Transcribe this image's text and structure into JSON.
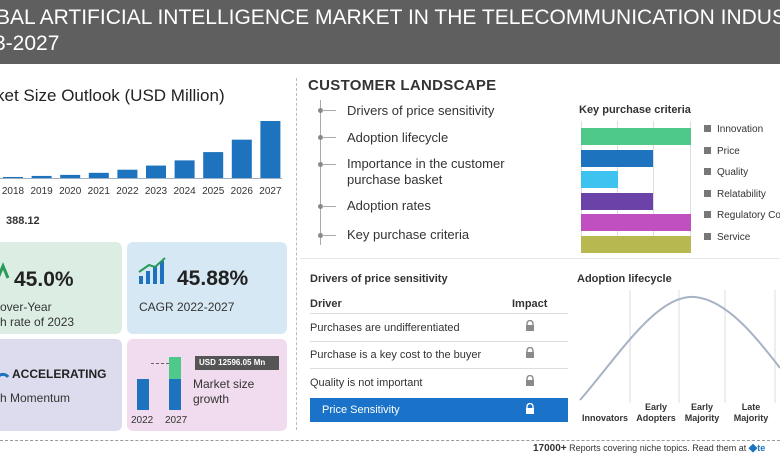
{
  "header": {
    "line1": "BAL ARTIFICIAL INTELLIGENCE MARKET IN THE TELECOMMUNICATION INDUSTRY MAR",
    "line2": "3-2027"
  },
  "market_outlook": {
    "title": "ket Size Outlook (USD Million)",
    "base_value": "388.12"
  },
  "chart_data": {
    "type": "bar",
    "title": "Market Size Outlook (USD Million)",
    "categories": [
      "2018",
      "2019",
      "2020",
      "2021",
      "2022",
      "2023",
      "2024",
      "2025",
      "2026",
      "2027"
    ],
    "values": [
      1,
      2,
      3,
      5,
      8,
      12,
      17,
      25,
      37,
      55
    ],
    "base_value_label": "388.12",
    "ylim": [
      0,
      55
    ],
    "color": "#1e73be"
  },
  "stats": {
    "yoy_value": "45.0%",
    "yoy_label_1": "over-Year",
    "yoy_label_2": "h rate of 2023",
    "cagr_value": "45.88%",
    "cagr_label": "CAGR  2022-2027",
    "momentum_title": "ACCELERATING",
    "momentum_label": "h Momentum",
    "growth_badge": "USD  12596.05 Mn",
    "growth_label_1": "Market size",
    "growth_label_2": "growth",
    "growth_year_start": "2022",
    "growth_year_end": "2027"
  },
  "customer_landscape": {
    "title": "CUSTOMER  LANDSCAPE",
    "items": [
      "Drivers of price sensitivity",
      "Adoption lifecycle",
      "Importance in the customer",
      "purchase basket",
      "Adoption rates",
      "Key purchase criteria"
    ]
  },
  "key_purchase_criteria": {
    "title": "Key purchase criteria",
    "items": [
      {
        "label": "Innovation",
        "value": 100,
        "color": "#4fc98a"
      },
      {
        "label": "Price",
        "value": 65,
        "color": "#1e73be"
      },
      {
        "label": "Quality",
        "value": 34,
        "color": "#3ec3f0"
      },
      {
        "label": "Relatability",
        "value": 65,
        "color": "#6b43a8"
      },
      {
        "label": "Regulatory Co",
        "value": 100,
        "color": "#c04fbf"
      },
      {
        "label": "Service",
        "value": 100,
        "color": "#b8b850"
      }
    ]
  },
  "price_sensitivity": {
    "title": "Drivers of price sensitivity",
    "col_driver": "Driver",
    "col_impact": "Impact",
    "rows": [
      "Purchases are undifferentiated",
      "Purchase is a key cost to the buyer",
      "Quality is not important",
      "Price Sensitivity"
    ]
  },
  "adoption_lifecycle": {
    "title": "Adoption lifecycle",
    "stages": [
      "Innovators",
      "Early",
      "Adopters",
      "Early",
      "Majority",
      "Late",
      "Majority"
    ]
  },
  "footer": {
    "count": "17000+",
    "text": " Reports covering niche topics. Read them at",
    "brand": "te"
  },
  "colors": {
    "header_bg": "#5f5f5f",
    "accent_blue": "#1e73be",
    "green_bar": "#4fc98a"
  }
}
